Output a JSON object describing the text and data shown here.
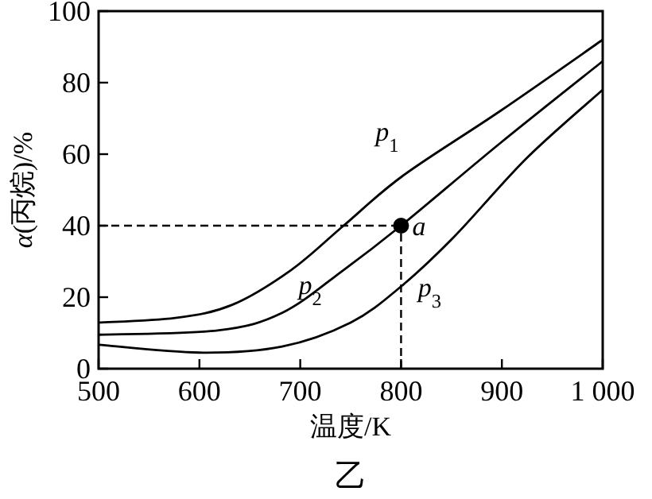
{
  "chart_data": {
    "type": "line",
    "xlabel": "温度/K",
    "ylabel": "*α*(丙烷)/%",
    "annotations": [
      {
        "text": "*a*",
        "x": 800,
        "y": 40
      },
      "乙"
    ],
    "xlim": [
      500,
      1000
    ],
    "ylim": [
      0,
      100
    ],
    "xticks": [
      500,
      600,
      700,
      800,
      900,
      {
        "value": 1000,
        "label": "1 000"
      }
    ],
    "yticks": [
      0,
      20,
      40,
      60,
      80,
      100
    ],
    "grid": false,
    "marker": "none",
    "line_style": "solid",
    "ref_lines": [
      {
        "axis": "y",
        "value": 40,
        "line_style": "dashed"
      },
      {
        "axis": "x",
        "value": 800,
        "line_style": "dashed"
      }
    ],
    "series": [
      {
        "name": "*p*$_{1}$",
        "color": "#000000",
        "x": [
          500,
          576,
          632,
          691,
          743,
          802,
          898,
          1000
        ],
        "values": [
          12.9,
          14.2,
          17.8,
          27.6,
          40,
          54,
          72,
          92
        ]
      },
      {
        "name": "*p*$_{2}$",
        "color": "#000000",
        "x": [
          500,
          618,
          682,
          743,
          800,
          898,
          1000
        ],
        "values": [
          9.5,
          10.7,
          15.6,
          27.6,
          40,
          63,
          86
        ]
      },
      {
        "name": "*p*$_{3}$",
        "color": "#000000",
        "x": [
          500,
          600,
          682,
          750,
          800,
          853,
          925,
          1000
        ],
        "values": [
          6.7,
          4.5,
          6.2,
          12.9,
          23,
          37,
          59,
          78
        ]
      },
      {
        "type": "scatter",
        "marker": "circle",
        "color": "#000000",
        "x": [
          800
        ],
        "values": [
          40
        ]
      }
    ]
  }
}
